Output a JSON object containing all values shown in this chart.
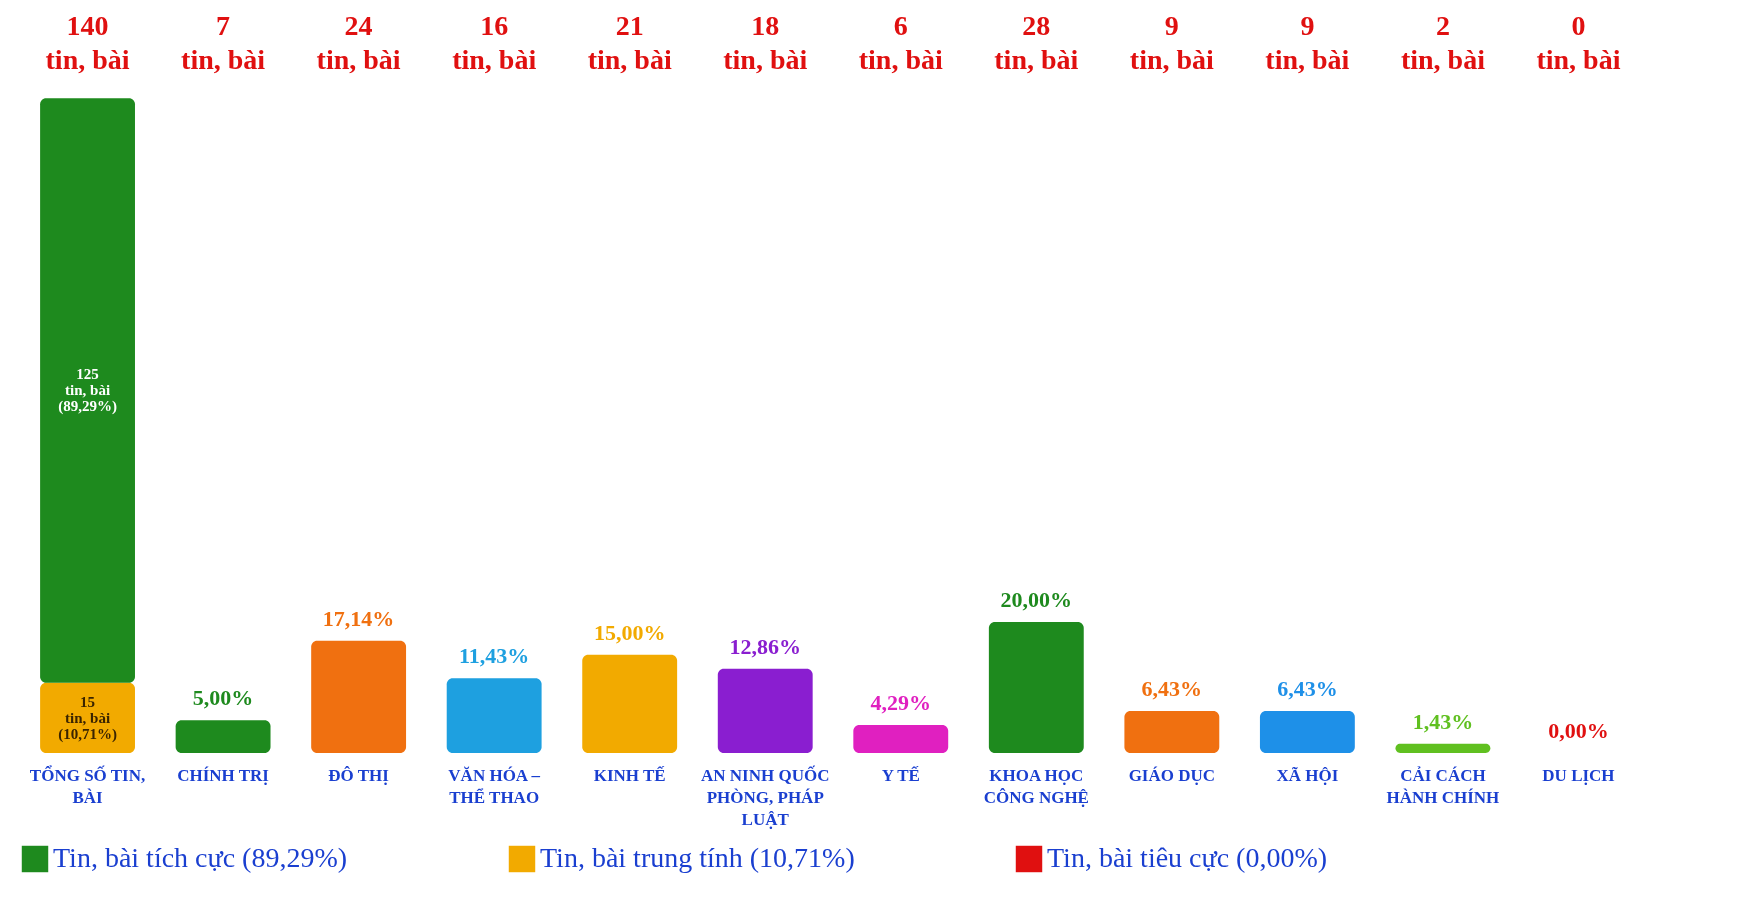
{
  "chart_data": {
    "type": "bar",
    "stacked": true,
    "legend": "bottom",
    "categories": [
      "TỔNG SỐ TIN, BÀI",
      "CHÍNH TRỊ",
      "ĐÔ THỊ",
      "VĂN HÓA – THỂ THAO",
      "KINH TẾ",
      "AN NINH QUỐC PHÒNG, PHÁP LUẬT",
      "Y TẾ",
      "KHOA HỌC CÔNG NGHỆ",
      "GIÁO DỤC",
      "XÃ HỘI",
      "CẢI CÁCH HÀNH CHÍNH",
      "DU LỊCH"
    ],
    "series": [
      {
        "name": "Tin, bài tiêu cực (0,00%)",
        "color": "#e01010",
        "values": [
          0.0,
          null,
          null,
          null,
          null,
          null,
          null,
          null,
          null,
          null,
          null,
          null
        ]
      },
      {
        "name": "Tin, bài trung tính (10,71%)",
        "color": "#f2aa00",
        "values": [
          10.71,
          null,
          null,
          null,
          null,
          null,
          null,
          null,
          null,
          null,
          null,
          null
        ],
        "value_labels": [
          "15\ntin, bài\n(10,71%)",
          null,
          null,
          null,
          null,
          null,
          null,
          null,
          null,
          null,
          null,
          null
        ]
      },
      {
        "name": "Tin, bài tích cực (89,29%)",
        "color": "#1e8a1e",
        "values": [
          89.29,
          null,
          null,
          null,
          null,
          null,
          null,
          null,
          null,
          null,
          null,
          null
        ],
        "value_labels": [
          "125\ntin, bài\n(89,29%)",
          null,
          null,
          null,
          null,
          null,
          null,
          null,
          null,
          null,
          null,
          null
        ]
      },
      {
        "colors": [
          null,
          "#1e8a1e",
          "#f07010",
          "#1ea0e0",
          "#f2aa00",
          "#8a1ed0",
          "#e020c0",
          "#1e8a1e",
          "#f07010",
          "#1e90e8",
          "#60c020",
          "#e01010"
        ],
        "values": [
          null,
          5.0,
          17.14,
          11.43,
          15.0,
          12.86,
          4.29,
          20.0,
          6.43,
          6.43,
          1.43,
          0.0
        ],
        "value_labels": [
          null,
          "5,00%",
          "17,14%",
          "11,43%",
          "15,00%",
          "12,86%",
          "4,29%",
          "20,00%",
          "6,43%",
          "6,43%",
          "1,43%",
          "0,00%"
        ]
      }
    ],
    "annotations": [
      "140\ntin, bài",
      "7\ntin, bài",
      "24\ntin, bài",
      "16\ntin, bài",
      "21\ntin, bài",
      "18\ntin, bài",
      "6\ntin, bài",
      "28\ntin, bài",
      "9\ntin, bài",
      "9\ntin, bài",
      "2\ntin, bài",
      "0\ntin, bài"
    ]
  }
}
